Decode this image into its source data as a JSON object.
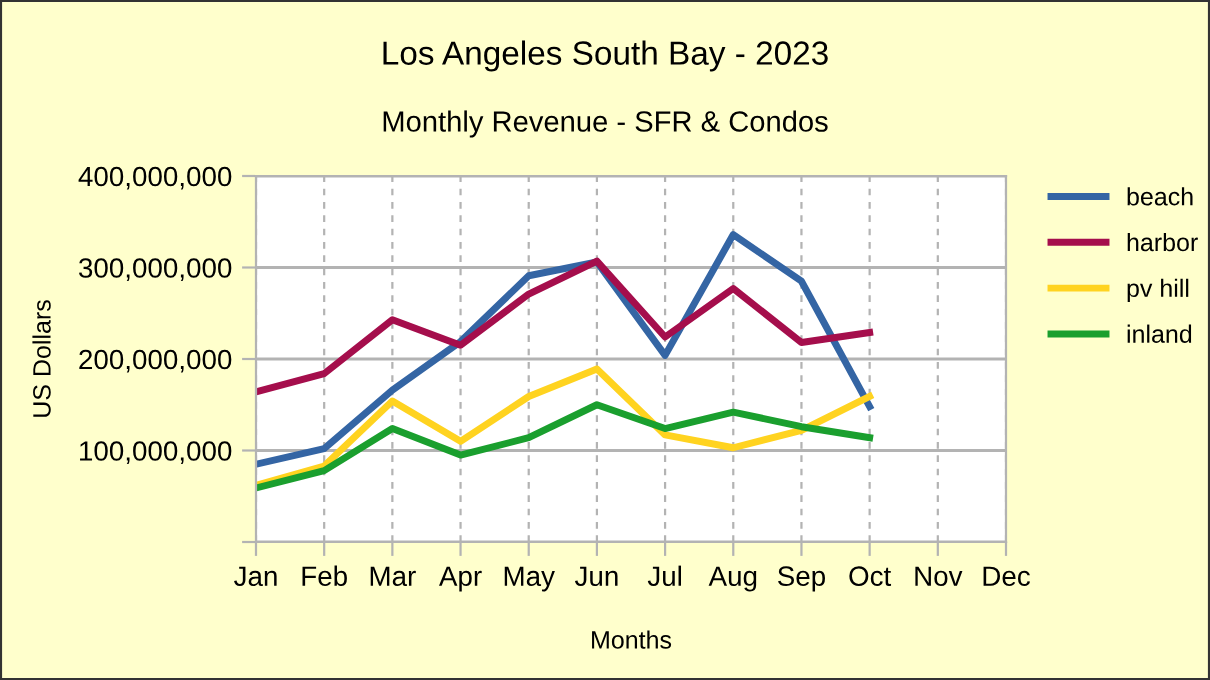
{
  "chart_data": {
    "type": "line",
    "title": "Los Angeles South Bay - 2023",
    "subtitle": "Monthly Revenue - SFR & Condos",
    "xlabel": "Months",
    "ylabel": "US Dollars",
    "categories": [
      "Jan",
      "Feb",
      "Mar",
      "Apr",
      "May",
      "Jun",
      "Jul",
      "Aug",
      "Sep",
      "Oct",
      "Nov",
      "Dec"
    ],
    "series": [
      {
        "name": "beach",
        "color": "#3465a4",
        "values": [
          85000000,
          102000000,
          166000000,
          219000000,
          291000000,
          306000000,
          204000000,
          336000000,
          285000000,
          148000000,
          null,
          null
        ]
      },
      {
        "name": "harbor",
        "color": "#a50e4c",
        "values": [
          164000000,
          184000000,
          243000000,
          215000000,
          271000000,
          307000000,
          224000000,
          277000000,
          218000000,
          229000000,
          null,
          null
        ]
      },
      {
        "name": "pv hill",
        "color": "#ffd320",
        "values": [
          62000000,
          83000000,
          154000000,
          110000000,
          159000000,
          189000000,
          117000000,
          103000000,
          122000000,
          159000000,
          null,
          null
        ]
      },
      {
        "name": "inland",
        "color": "#1a9f2e",
        "values": [
          59000000,
          78000000,
          124000000,
          95000000,
          114000000,
          150000000,
          124000000,
          142000000,
          126000000,
          114000000,
          null,
          null
        ]
      }
    ],
    "ylim": [
      0,
      400000000
    ],
    "yticks": [
      {
        "value": 0,
        "label": null
      },
      {
        "value": 100000000,
        "label": "100,000,000"
      },
      {
        "value": 200000000,
        "label": "200,000,000"
      },
      {
        "value": 300000000,
        "label": "300,000,000"
      },
      {
        "value": 400000000,
        "label": "400,000,000"
      }
    ],
    "grid": true,
    "legend": "right",
    "marker": "none",
    "line_style": "solid"
  }
}
